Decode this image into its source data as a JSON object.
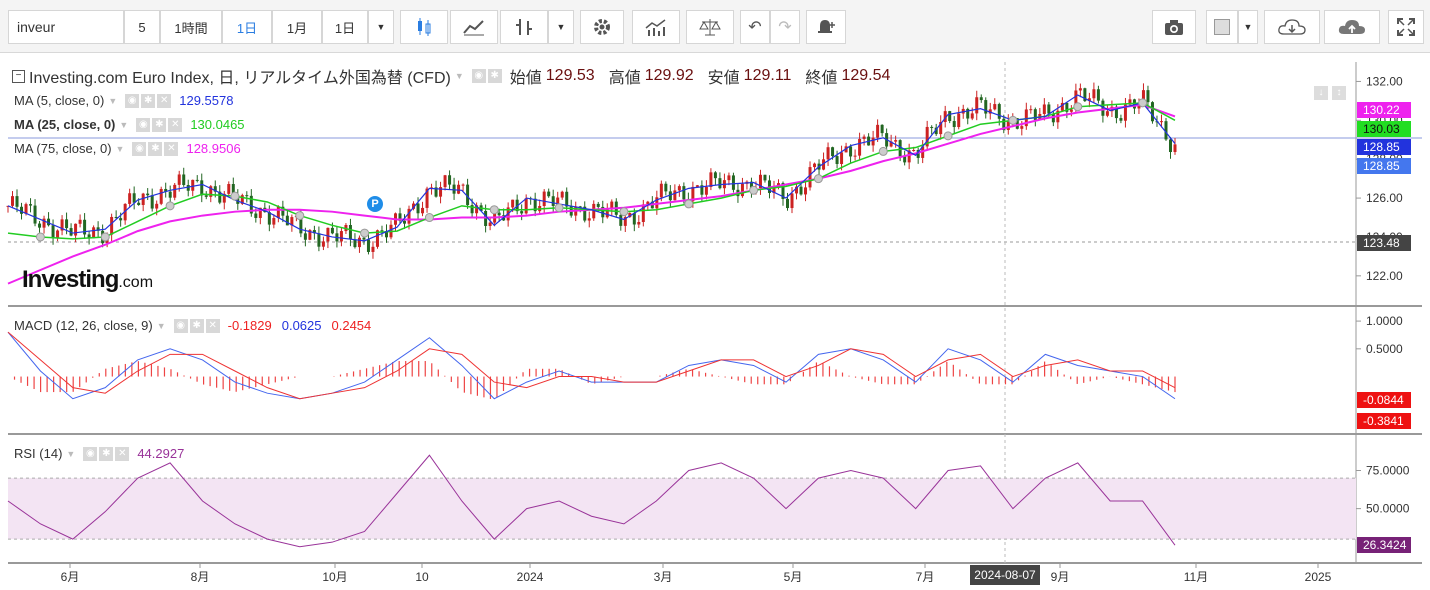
{
  "toolbar": {
    "symbol": "inveur",
    "interval_5": "5",
    "interval_1h": "1時間",
    "interval_1d": "1日",
    "interval_1mo": "1月",
    "interval_select": "1日"
  },
  "legend": {
    "title": "Investing.com Euro Index, 日, リアルタイム外国為替 (CFD)",
    "open_label": "始値",
    "open": "129.53",
    "high_label": "高値",
    "high": "129.92",
    "low_label": "安値",
    "low": "129.11",
    "close_label": "終値",
    "close": "129.54",
    "ma5_label": "MA (5, close, 0)",
    "ma5_value": "129.5578",
    "ma25_label": "MA (25, close, 0)",
    "ma25_value": "130.0465",
    "ma75_label": "MA (75, close, 0)",
    "ma75_value": "128.9506",
    "macd_label": "MACD (12, 26, close, 9)",
    "macd_v1": "-0.1829",
    "macd_v2": "0.0625",
    "macd_v3": "0.2454",
    "rsi_label": "RSI (14)",
    "rsi_value": "44.2927"
  },
  "watermark": {
    "brand": "Investing",
    "suffix": ".com"
  },
  "badges": {
    "ma75": "130.22",
    "ma25": "130.03",
    "price1": "128.85",
    "price2": "128.85",
    "cursor": "123.48",
    "macd_a": "-0.0844",
    "macd_b": "-0.3841",
    "rsi": "26.3424"
  },
  "colors": {
    "ma5": "#2233dd",
    "ma25": "#22cc22",
    "ma75": "#ee22ee",
    "macd_signal": "#ee3333",
    "macd_line": "#4466ee",
    "rsi": "#993399",
    "up": "#cc2222",
    "down": "#226622"
  },
  "xaxis": {
    "cursor_label": "2024-08-07"
  },
  "chart_data": {
    "type": "line",
    "title": "Investing.com Euro Index, 日, リアルタイム外国為替 (CFD)",
    "price_axis": {
      "ticks": [
        "132.00",
        "130.00",
        "128.00",
        "126.00",
        "124.00",
        "122.00"
      ],
      "ylim": [
        120.5,
        133.0
      ]
    },
    "macd_axis": {
      "ticks": [
        "1.0000",
        "0.5000"
      ],
      "ylim": [
        -1.0,
        1.2
      ]
    },
    "rsi_axis": {
      "ticks": [
        "75.0000",
        "50.0000"
      ],
      "ylim": [
        15,
        95
      ],
      "band": [
        30,
        70
      ]
    },
    "x_ticks": [
      "6月",
      "8月",
      "10月",
      "10",
      "2024",
      "3月",
      "5月",
      "7月",
      "9月",
      "11月",
      "2025"
    ],
    "x": [
      0,
      10,
      20,
      30,
      40,
      50,
      60,
      70,
      80,
      90,
      100,
      110,
      120,
      130,
      140,
      150,
      160,
      170,
      180,
      190,
      200,
      210,
      220,
      230,
      240,
      250,
      260,
      270,
      280,
      290,
      300,
      310,
      320,
      330,
      340,
      350,
      360
    ],
    "series": [
      {
        "name": "MA (5, close, 0)",
        "values": [
          125.6,
          124.9,
          124.2,
          124.4,
          125.9,
          126.4,
          126.7,
          125.9,
          125.3,
          124.4,
          124.0,
          123.8,
          124.5,
          126.5,
          126.4,
          124.6,
          126.0,
          125.7,
          125.4,
          124.9,
          125.9,
          126.5,
          126.7,
          126.8,
          126.0,
          127.6,
          128.7,
          129.1,
          128.2,
          130.3,
          130.6,
          130.0,
          130.2,
          131.3,
          130.5,
          130.9,
          128.8
        ]
      },
      {
        "name": "MA (25, close, 0)",
        "values": [
          124.2,
          124.0,
          123.9,
          124.0,
          124.8,
          125.6,
          126.2,
          126.1,
          125.8,
          125.1,
          124.6,
          124.2,
          124.3,
          125.0,
          125.6,
          125.4,
          125.4,
          125.5,
          125.4,
          125.3,
          125.4,
          125.7,
          126.0,
          126.4,
          126.6,
          127.0,
          127.8,
          128.4,
          128.6,
          129.2,
          129.8,
          130.0,
          130.2,
          130.7,
          130.8,
          130.9,
          130.0
        ]
      },
      {
        "name": "MA (75, close, 0)",
        "values": [
          121.6,
          122.3,
          123.0,
          123.6,
          124.3,
          124.8,
          125.1,
          125.3,
          125.4,
          125.4,
          125.3,
          125.1,
          124.9,
          124.9,
          125.0,
          125.0,
          125.1,
          125.3,
          125.4,
          125.5,
          125.7,
          125.9,
          126.1,
          126.4,
          126.7,
          127.0,
          127.4,
          127.9,
          128.3,
          128.8,
          129.3,
          129.7,
          130.1,
          130.4,
          130.6,
          130.8,
          130.2
        ]
      },
      {
        "name": "MACD",
        "values": [
          0.8,
          0.1,
          -0.4,
          -0.2,
          0.3,
          0.5,
          0.3,
          -0.1,
          -0.3,
          -0.4,
          -0.3,
          -0.1,
          0.3,
          0.7,
          0.2,
          -0.4,
          -0.1,
          0.1,
          -0.1,
          -0.1,
          -0.1,
          0.2,
          0.3,
          0.2,
          -0.1,
          0.4,
          0.5,
          0.3,
          -0.1,
          0.5,
          0.3,
          -0.1,
          0.4,
          0.2,
          0.1,
          0.0,
          -0.4
        ]
      },
      {
        "name": "Signal",
        "values": [
          0.8,
          0.3,
          -0.2,
          -0.3,
          0.1,
          0.4,
          0.4,
          0.1,
          -0.2,
          -0.4,
          -0.3,
          -0.2,
          0.1,
          0.5,
          0.4,
          -0.1,
          -0.2,
          0.0,
          0.0,
          -0.1,
          -0.1,
          0.1,
          0.3,
          0.3,
          0.0,
          0.2,
          0.5,
          0.4,
          0.0,
          0.3,
          0.4,
          0.0,
          0.2,
          0.3,
          0.1,
          0.1,
          -0.2
        ]
      },
      {
        "name": "RSI (14)",
        "values": [
          55,
          40,
          30,
          48,
          70,
          80,
          55,
          40,
          30,
          25,
          28,
          35,
          60,
          85,
          55,
          30,
          50,
          55,
          45,
          40,
          55,
          75,
          80,
          70,
          50,
          70,
          75,
          70,
          50,
          75,
          78,
          50,
          70,
          80,
          55,
          55,
          26
        ]
      }
    ]
  }
}
